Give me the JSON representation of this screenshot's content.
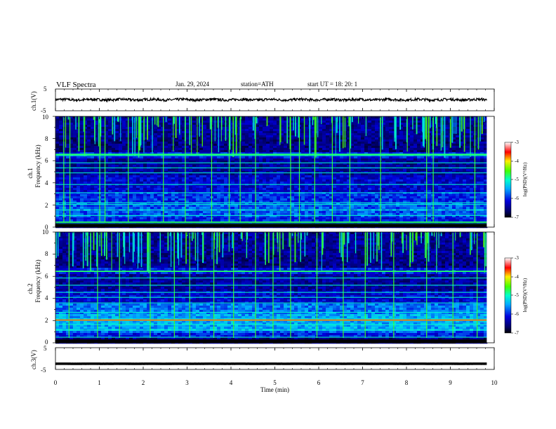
{
  "header": {
    "title": "VLF  Spectra",
    "date": "Jan. 29, 2024",
    "station": "station=ATH",
    "start": "start  UT  =    18: 20: 1"
  },
  "chart_data": [
    {
      "type": "line",
      "ylabel": "ch.1(V)",
      "yticks": [
        "5",
        "-5"
      ],
      "ylim": [
        -5,
        5
      ],
      "xlim": [
        0,
        10
      ],
      "x_end_min": 9.83,
      "trace_level_v": 0.1,
      "trace_noise_v": 0.6,
      "color": "#000000"
    },
    {
      "type": "heatmap",
      "ylabel": "Frequency  (kHz)",
      "ylabel2": "ch.1",
      "yticks": [
        "0",
        "2",
        "4",
        "6",
        "8",
        "10"
      ],
      "ylim": [
        0,
        10
      ],
      "xlim": [
        0,
        10
      ],
      "x_end_min": 9.83,
      "colorbar": {
        "label": "log(PSD)(V²/Hz)",
        "ticks": [
          "-3",
          "-4",
          "-5",
          "-6",
          "-7"
        ],
        "range": [
          -7,
          -3
        ]
      },
      "lines_khz": [
        0.3,
        0.45,
        1.05,
        1.55,
        2.05,
        2.2,
        3.1,
        3.85,
        4.9,
        5.35,
        5.8,
        6.45,
        6.6
      ],
      "strong_lines_khz": [
        0.45,
        6.55
      ],
      "sferic_times_min": [
        0.18,
        0.32,
        1.0,
        1.12,
        1.65,
        2.45,
        2.95,
        3.55,
        3.95,
        4.2,
        4.55,
        5.35,
        5.55,
        5.9,
        6.3,
        6.7,
        7.4,
        8.45,
        8.6,
        9.55
      ]
    },
    {
      "type": "heatmap",
      "ylabel": "Frequency  (kHz)",
      "ylabel2": "ch.2",
      "yticks": [
        "0",
        "2",
        "4",
        "6",
        "8",
        "10"
      ],
      "ylim": [
        0,
        10
      ],
      "xlim": [
        0,
        10
      ],
      "x_end_min": 9.83,
      "colorbar": {
        "label": "log(PSD)(V²/Hz)",
        "ticks": [
          "-3",
          "-4",
          "-5",
          "-6",
          "-7"
        ],
        "range": [
          -7,
          -3
        ]
      },
      "lines_khz": [
        0.5,
        1.15,
        1.65,
        2.0,
        2.15,
        2.75,
        3.6,
        4.1,
        4.55,
        5.2,
        5.85,
        6.45
      ],
      "strong_lines_khz": [
        2.05,
        6.45
      ],
      "sferic_times_min": [
        0.3,
        0.95,
        1.45,
        2.15,
        2.7,
        3.05,
        3.6,
        4.05,
        4.55,
        4.95,
        5.35,
        5.95,
        6.55,
        7.05,
        7.7,
        8.45,
        9.05,
        9.6
      ]
    },
    {
      "type": "line",
      "ylabel": "ch.3(V)",
      "yticks": [
        "5",
        "-5"
      ],
      "ylim": [
        -5,
        5
      ],
      "xlim": [
        0,
        10
      ],
      "x_end_min": 9.83,
      "trace_level_v": -2.4,
      "trace_noise_v": 0.05,
      "color": "#000000"
    }
  ],
  "xaxis": {
    "label": "Time  (min)",
    "ticks": [
      "0",
      "1",
      "2",
      "3",
      "4",
      "5",
      "6",
      "7",
      "8",
      "9",
      "10"
    ]
  }
}
